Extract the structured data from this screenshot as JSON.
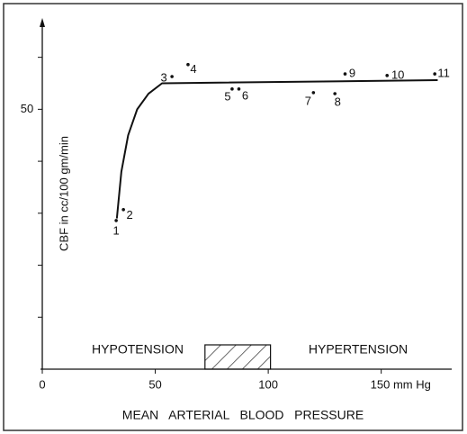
{
  "chart_data": {
    "type": "scatter",
    "y_label": "CBF in cc/100 gm/min",
    "x_label": "MEAN   ARTERIAL   BLOOD   PRESSURE",
    "xlim": [
      0,
      180
    ],
    "ylim": [
      0,
      66
    ],
    "xticks": [
      0,
      50,
      100,
      {
        "value": 150,
        "label": "150 mm Hg"
      }
    ],
    "yticks": [
      50
    ],
    "yticks_minor": [
      10,
      20,
      30,
      40,
      60
    ],
    "points": {
      "labels": [
        "1",
        "2",
        "3",
        "4",
        "5",
        "6",
        "7",
        "8",
        "9",
        "10",
        "11"
      ],
      "x": [
        32.7,
        35.9,
        57.4,
        64.5,
        84,
        87,
        120,
        129.5,
        134,
        152.6,
        173.7
      ],
      "y": [
        28.6,
        30.7,
        56.3,
        58.6,
        53.9,
        53.9,
        53.2,
        53,
        56.8,
        56.5,
        56.8
      ]
    },
    "curve": {
      "x": [
        33,
        35,
        38,
        42,
        47,
        53,
        175
      ],
      "y": [
        29,
        38,
        45,
        50,
        53,
        55,
        55.6
      ]
    },
    "annotations": [
      "HYPOTENSION",
      "HYPERTENSION"
    ],
    "hatch_range": [
      72,
      101
    ]
  }
}
